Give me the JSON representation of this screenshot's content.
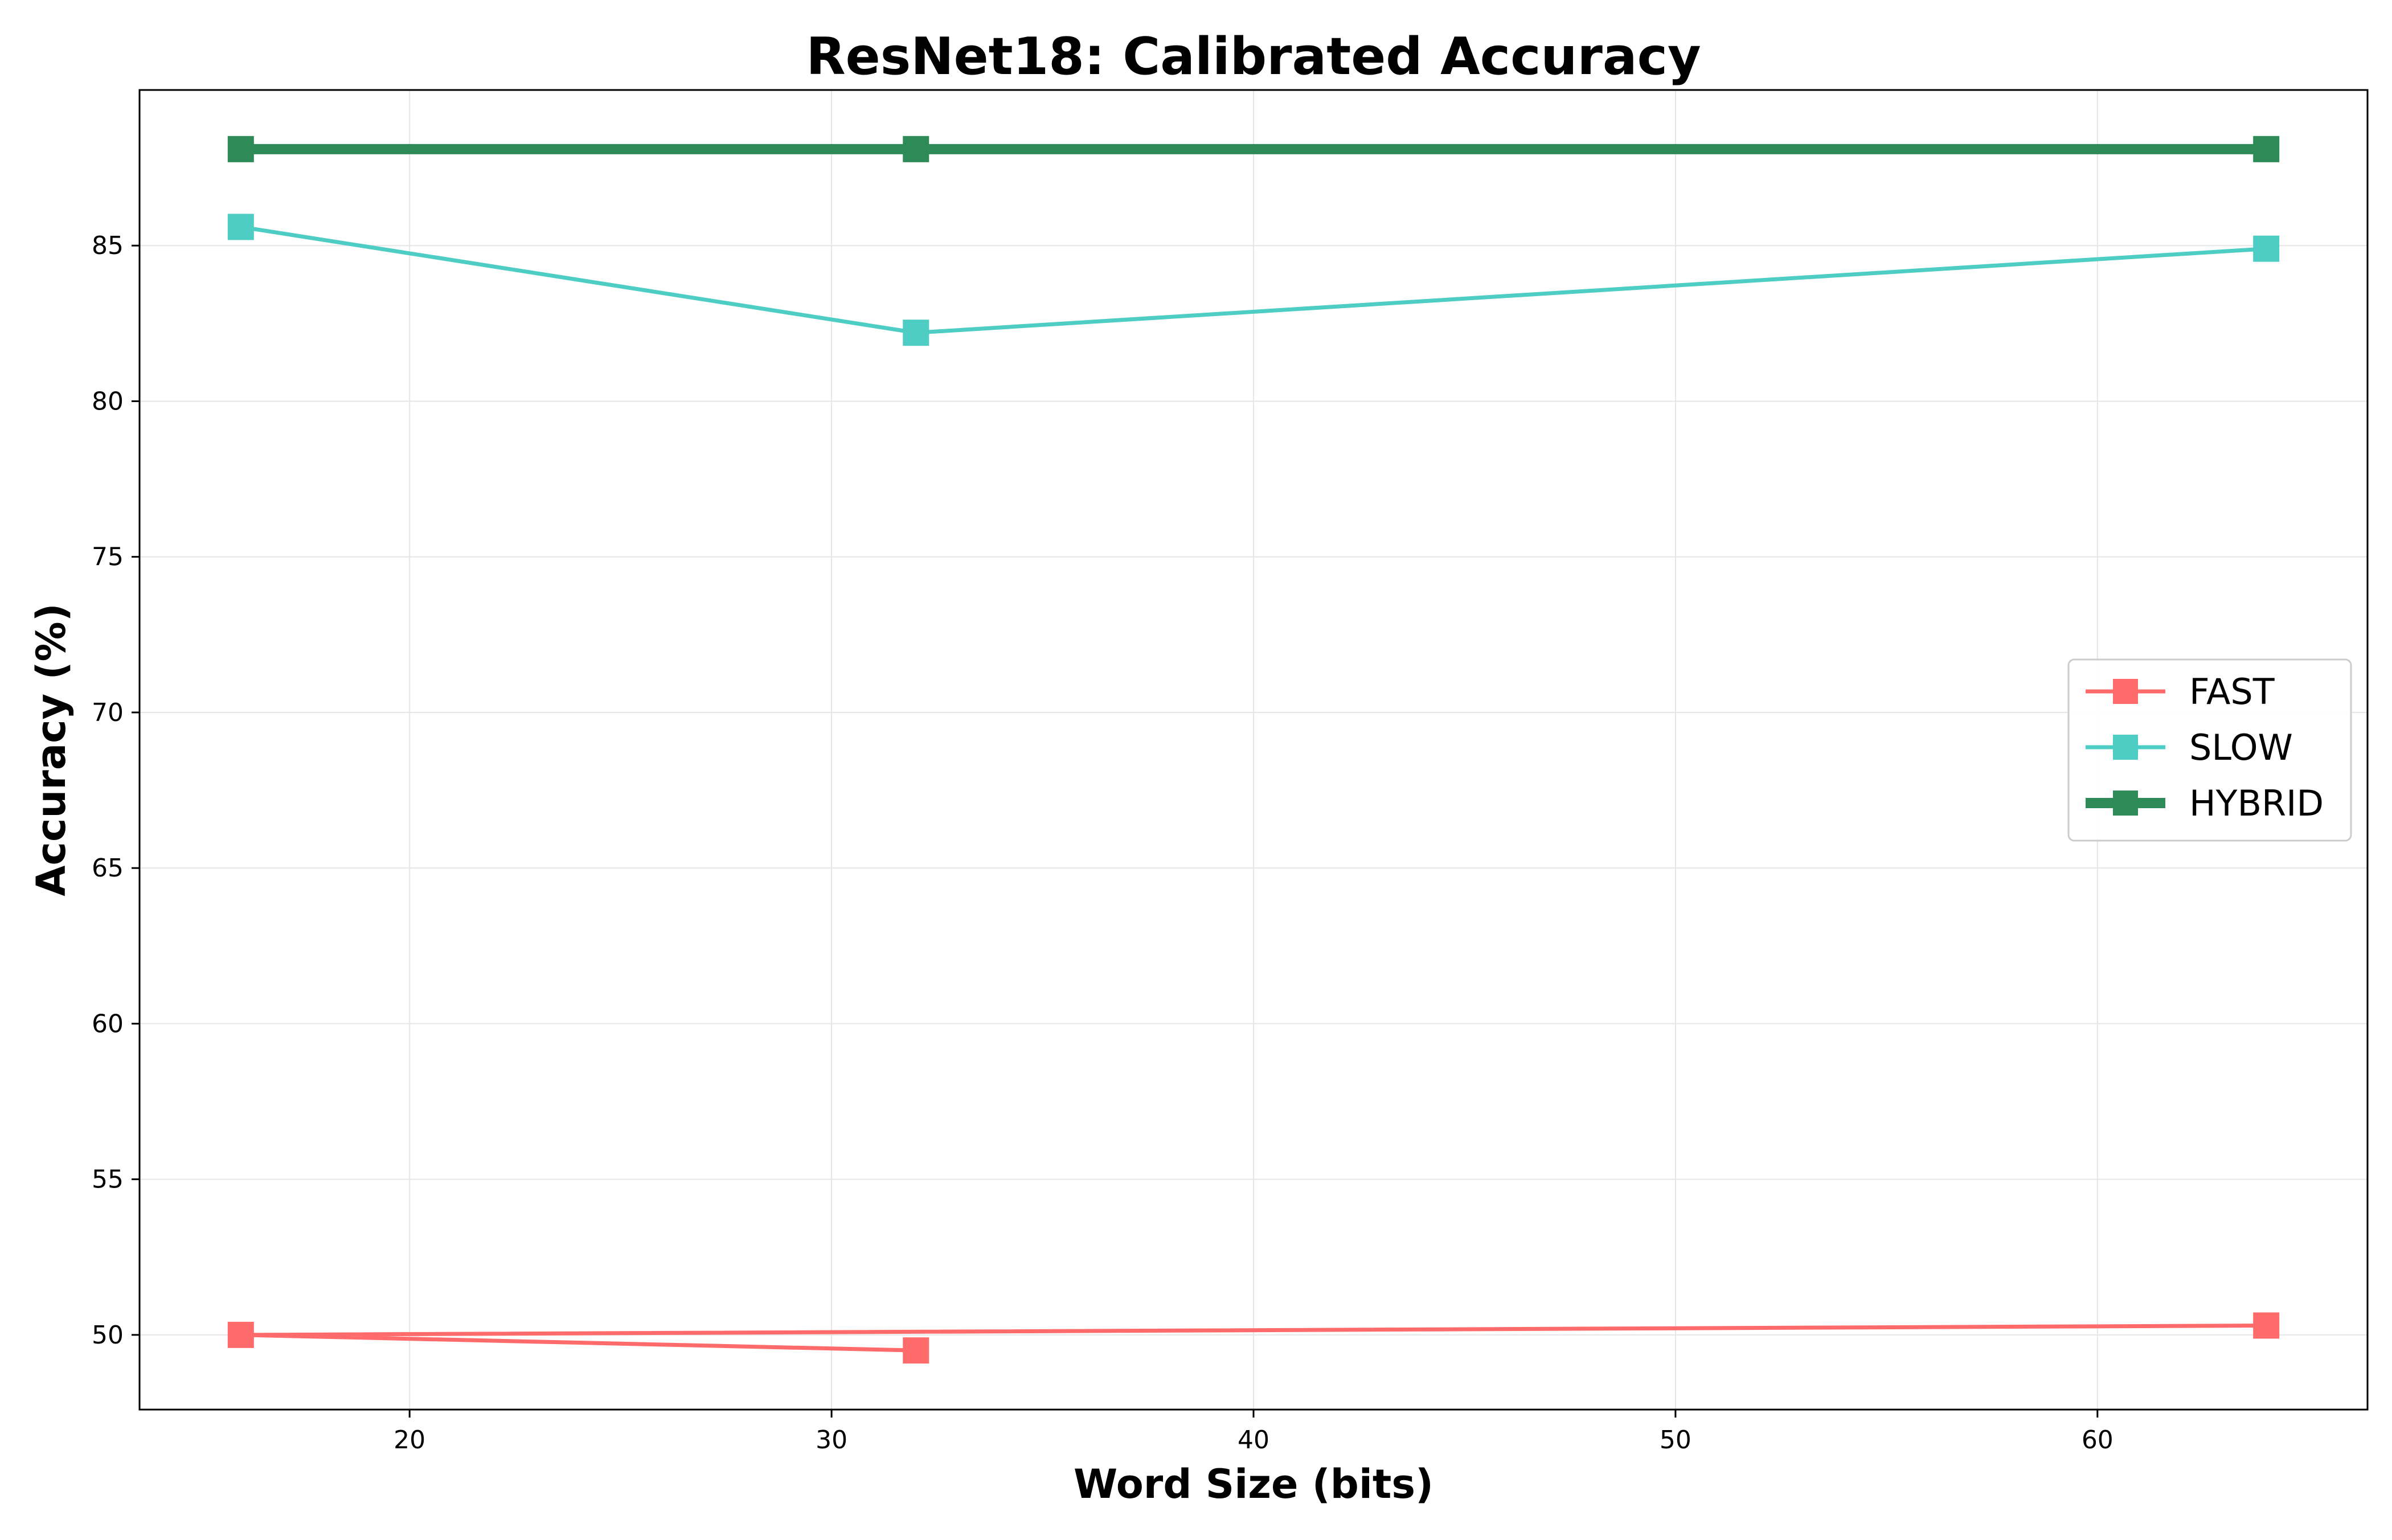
{
  "chart_data": {
    "type": "line",
    "title": "ResNet18: Calibrated Accuracy",
    "xlabel": "Word Size (bits)",
    "ylabel": "Accuracy (%)",
    "xlim": [
      13.6,
      66.4
    ],
    "ylim": [
      47.6,
      90.0
    ],
    "x_ticks": [
      20,
      30,
      40,
      50,
      60
    ],
    "y_ticks": [
      50,
      55,
      60,
      65,
      70,
      75,
      80,
      85
    ],
    "grid": true,
    "legend_position": "center-right",
    "series": [
      {
        "name": "FAST",
        "color": "#ff6b6b",
        "marker": "square",
        "line_weight": "normal",
        "points": [
          {
            "x": 32,
            "y": 49.5
          },
          {
            "x": 16,
            "y": 50.0
          },
          {
            "x": 64,
            "y": 50.3
          }
        ]
      },
      {
        "name": "SLOW",
        "color": "#4ecdc4",
        "marker": "square",
        "line_weight": "normal",
        "points": [
          {
            "x": 16,
            "y": 85.6
          },
          {
            "x": 32,
            "y": 82.2
          },
          {
            "x": 64,
            "y": 84.9
          }
        ]
      },
      {
        "name": "HYBRID",
        "color": "#2e8b57",
        "marker": "square",
        "line_weight": "bold",
        "points": [
          {
            "x": 16,
            "y": 88.1
          },
          {
            "x": 32,
            "y": 88.1
          },
          {
            "x": 64,
            "y": 88.1
          }
        ]
      }
    ]
  }
}
